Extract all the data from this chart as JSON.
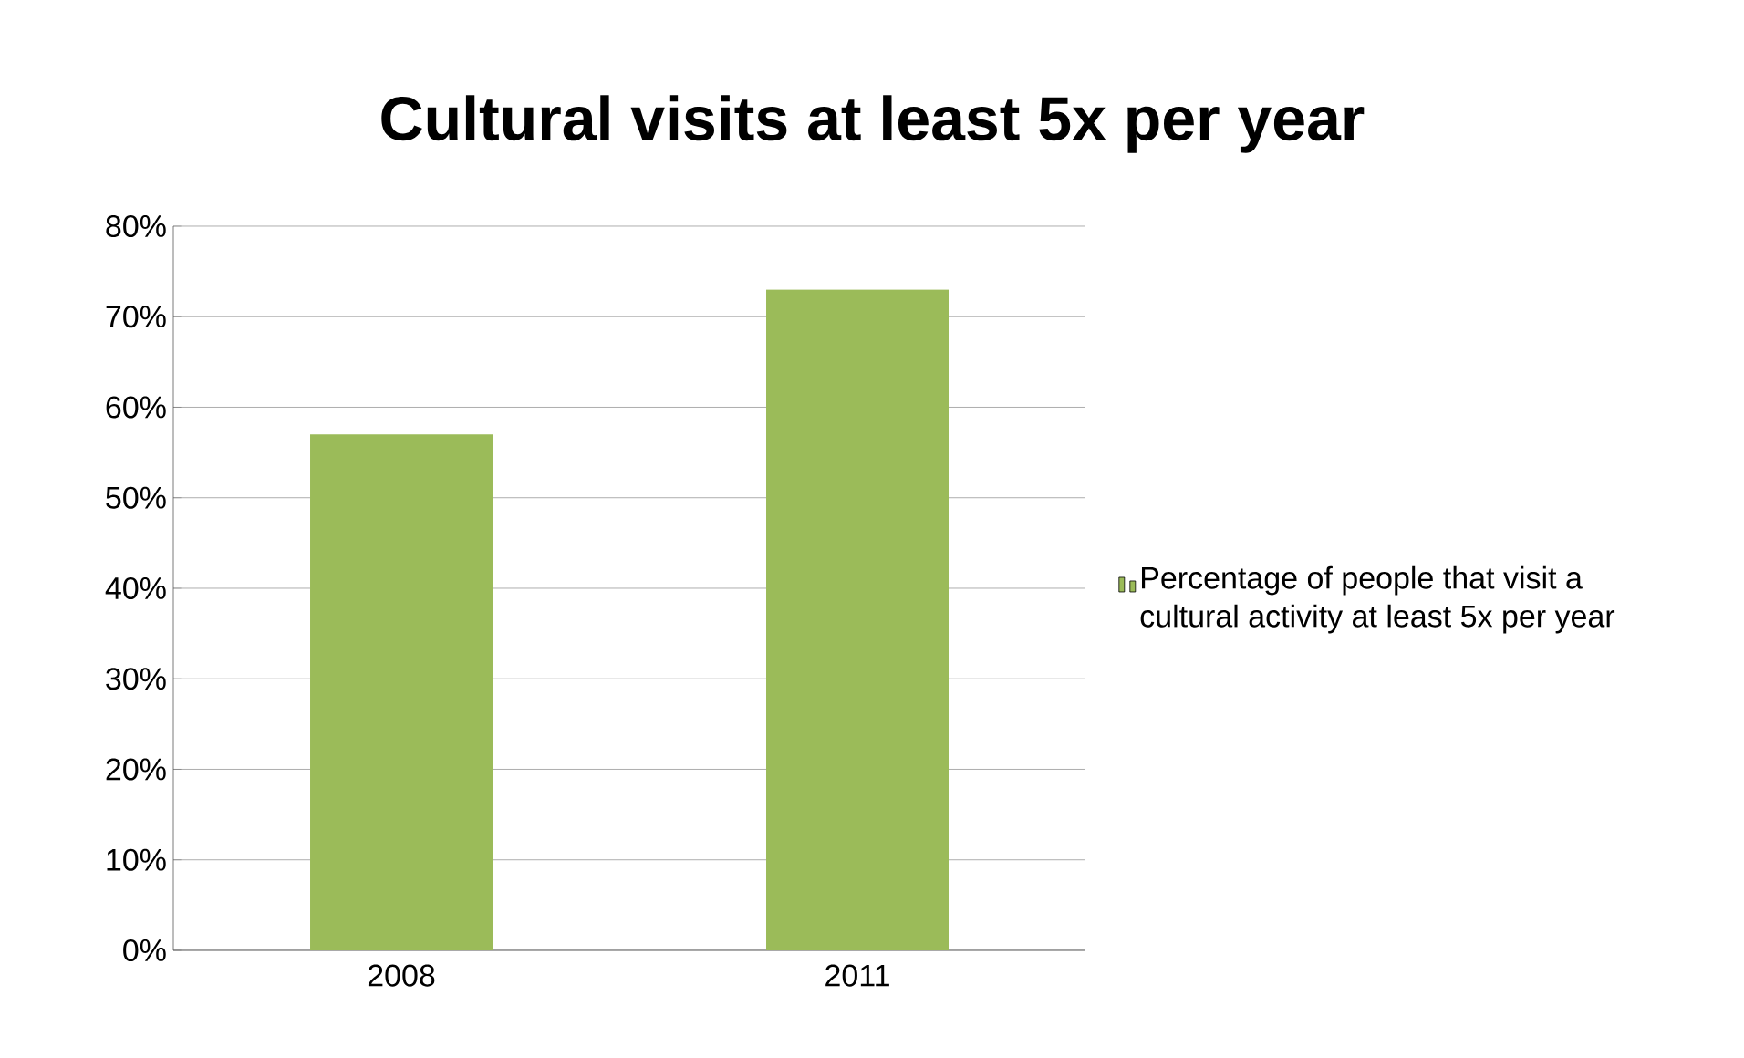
{
  "chart_data": {
    "type": "bar",
    "title": "Cultural visits at least 5x per year",
    "categories": [
      "2008",
      "2011"
    ],
    "series": [
      {
        "name": "Percentage of people that visit a cultural activity at least 5x per year",
        "color": "#9bbb59",
        "values": [
          57,
          73
        ]
      }
    ],
    "ylim": [
      0,
      80
    ],
    "yticks": [
      {
        "value": 0,
        "label": "0%"
      },
      {
        "value": 10,
        "label": "10%"
      },
      {
        "value": 20,
        "label": "20%"
      },
      {
        "value": 30,
        "label": "30%"
      },
      {
        "value": 40,
        "label": "40%"
      },
      {
        "value": 50,
        "label": "50%"
      },
      {
        "value": 60,
        "label": "60%"
      },
      {
        "value": 70,
        "label": "70%"
      },
      {
        "value": 80,
        "label": "80%"
      }
    ],
    "grid": "y",
    "legend": "right"
  }
}
